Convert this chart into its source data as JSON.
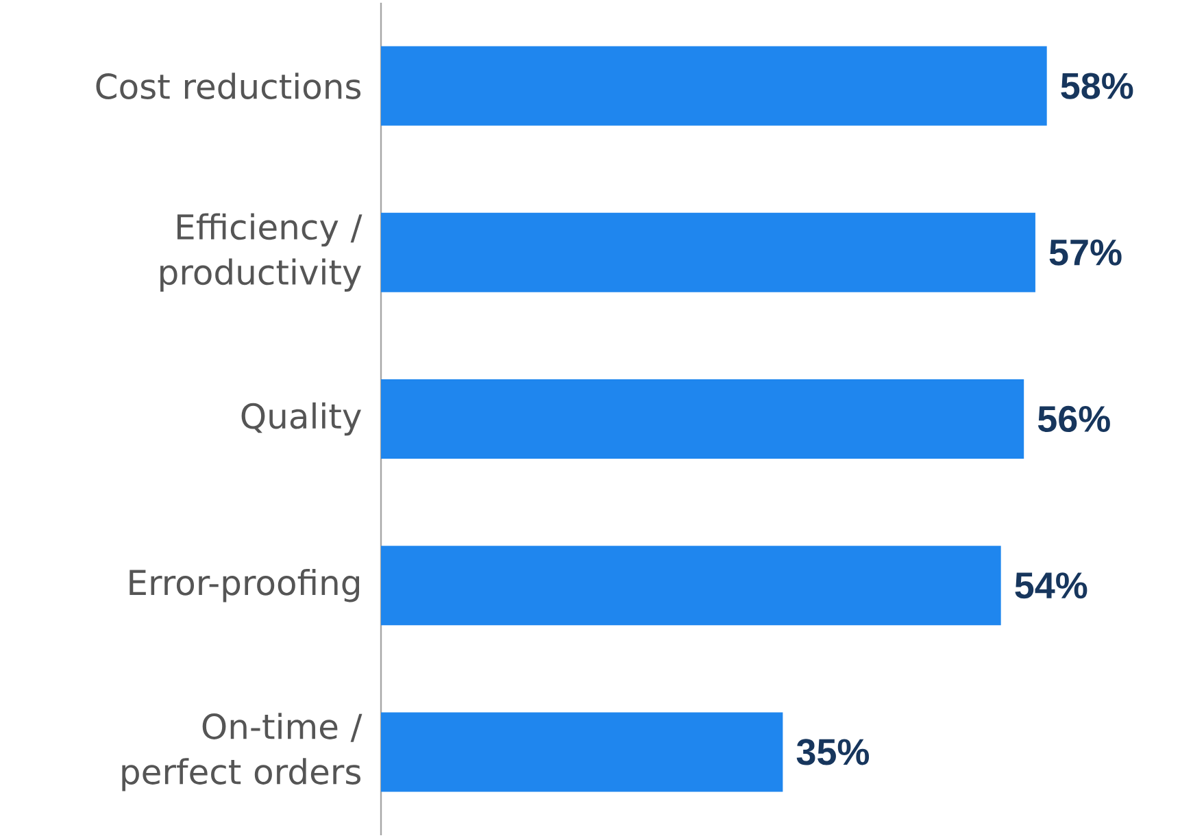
{
  "chart_data": {
    "type": "bar",
    "orientation": "horizontal",
    "categories": [
      "Cost reductions",
      "Efficiency / productivity",
      "Quality",
      "Error-proofing",
      "On-time / perfect orders"
    ],
    "values": [
      58,
      57,
      56,
      54,
      35
    ],
    "value_labels": [
      "58%",
      "57%",
      "56%",
      "54%",
      "35%"
    ],
    "color": "#1f86ee"
  }
}
